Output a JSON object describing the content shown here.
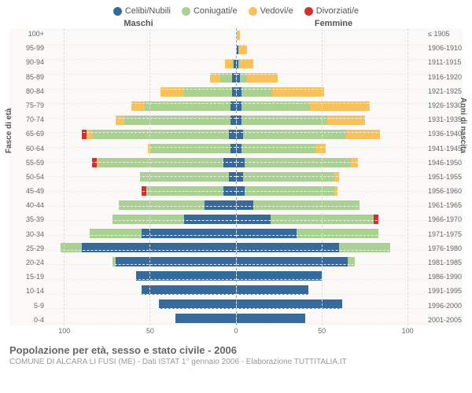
{
  "legend": {
    "items": [
      {
        "label": "Celibi/Nubili",
        "color": "#366a9c"
      },
      {
        "label": "Coniugati/e",
        "color": "#aad092"
      },
      {
        "label": "Vedovi/e",
        "color": "#f7c15b"
      },
      {
        "label": "Divorziati/e",
        "color": "#d62f2f"
      }
    ]
  },
  "side_labels": {
    "left": "Maschi",
    "right": "Femmine"
  },
  "axis_labels": {
    "left": "Fasce di età",
    "right": "Anni di nascita"
  },
  "age_bands": [
    "100+",
    "95-99",
    "90-94",
    "85-89",
    "80-84",
    "75-79",
    "70-74",
    "65-69",
    "60-64",
    "55-59",
    "50-54",
    "45-49",
    "40-44",
    "35-39",
    "30-34",
    "25-29",
    "20-24",
    "15-19",
    "10-14",
    "5-9",
    "0-4"
  ],
  "birth_years": [
    "≤ 1905",
    "1906-1910",
    "1911-1915",
    "1916-1920",
    "1921-1925",
    "1926-1930",
    "1931-1935",
    "1936-1940",
    "1941-1945",
    "1946-1950",
    "1951-1955",
    "1956-1960",
    "1961-1965",
    "1966-1970",
    "1971-1975",
    "1976-1980",
    "1981-1985",
    "1986-1990",
    "1991-1995",
    "1996-2000",
    "2001-2005"
  ],
  "xmax": 110,
  "xticks": [
    100,
    50,
    0,
    50,
    100
  ],
  "colors": {
    "celibi": "#366a9c",
    "coniugati": "#aad092",
    "vedovi": "#f7c15b",
    "divorziati": "#d62f2f",
    "bg": "#faf9f8",
    "grid": "#dddddd"
  },
  "males": [
    {
      "c": 0,
      "m": 0,
      "w": 0,
      "d": 0
    },
    {
      "c": 0,
      "m": 0,
      "w": 0,
      "d": 0
    },
    {
      "c": 1,
      "m": 1,
      "w": 4,
      "d": 0
    },
    {
      "c": 2,
      "m": 7,
      "w": 6,
      "d": 0
    },
    {
      "c": 2,
      "m": 28,
      "w": 14,
      "d": 0
    },
    {
      "c": 3,
      "m": 50,
      "w": 8,
      "d": 0
    },
    {
      "c": 3,
      "m": 62,
      "w": 5,
      "d": 0
    },
    {
      "c": 4,
      "m": 80,
      "w": 3,
      "d": 3
    },
    {
      "c": 3,
      "m": 47,
      "w": 1,
      "d": 0
    },
    {
      "c": 7,
      "m": 73,
      "w": 1,
      "d": 3
    },
    {
      "c": 4,
      "m": 52,
      "w": 0,
      "d": 0
    },
    {
      "c": 7,
      "m": 45,
      "w": 0,
      "d": 3
    },
    {
      "c": 18,
      "m": 50,
      "w": 0,
      "d": 0
    },
    {
      "c": 30,
      "m": 42,
      "w": 0,
      "d": 0
    },
    {
      "c": 55,
      "m": 30,
      "w": 0,
      "d": 0
    },
    {
      "c": 90,
      "m": 12,
      "w": 0,
      "d": 0
    },
    {
      "c": 70,
      "m": 2,
      "w": 0,
      "d": 0
    },
    {
      "c": 58,
      "m": 0,
      "w": 0,
      "d": 0
    },
    {
      "c": 55,
      "m": 0,
      "w": 0,
      "d": 0
    },
    {
      "c": 45,
      "m": 0,
      "w": 0,
      "d": 0
    },
    {
      "c": 35,
      "m": 0,
      "w": 0,
      "d": 0
    }
  ],
  "females": [
    {
      "c": 0,
      "m": 0,
      "w": 2,
      "d": 0
    },
    {
      "c": 1,
      "m": 0,
      "w": 5,
      "d": 0
    },
    {
      "c": 1,
      "m": 1,
      "w": 8,
      "d": 0
    },
    {
      "c": 2,
      "m": 4,
      "w": 18,
      "d": 0
    },
    {
      "c": 3,
      "m": 18,
      "w": 30,
      "d": 0
    },
    {
      "c": 3,
      "m": 40,
      "w": 35,
      "d": 0
    },
    {
      "c": 3,
      "m": 50,
      "w": 22,
      "d": 0
    },
    {
      "c": 4,
      "m": 60,
      "w": 20,
      "d": 0
    },
    {
      "c": 3,
      "m": 43,
      "w": 6,
      "d": 0
    },
    {
      "c": 5,
      "m": 62,
      "w": 4,
      "d": 0
    },
    {
      "c": 4,
      "m": 53,
      "w": 3,
      "d": 0
    },
    {
      "c": 5,
      "m": 52,
      "w": 2,
      "d": 0
    },
    {
      "c": 10,
      "m": 62,
      "w": 0,
      "d": 0
    },
    {
      "c": 20,
      "m": 60,
      "w": 0,
      "d": 3
    },
    {
      "c": 35,
      "m": 48,
      "w": 0,
      "d": 0
    },
    {
      "c": 60,
      "m": 30,
      "w": 0,
      "d": 0
    },
    {
      "c": 65,
      "m": 4,
      "w": 0,
      "d": 0
    },
    {
      "c": 50,
      "m": 0,
      "w": 0,
      "d": 0
    },
    {
      "c": 42,
      "m": 0,
      "w": 0,
      "d": 0
    },
    {
      "c": 62,
      "m": 0,
      "w": 0,
      "d": 0
    },
    {
      "c": 40,
      "m": 0,
      "w": 0,
      "d": 0
    }
  ],
  "title": "Popolazione per età, sesso e stato civile - 2006",
  "subtitle": "COMUNE DI ALCARA LI FUSI (ME) - Dati ISTAT 1° gennaio 2006 - Elaborazione TUTTITALIA.IT"
}
